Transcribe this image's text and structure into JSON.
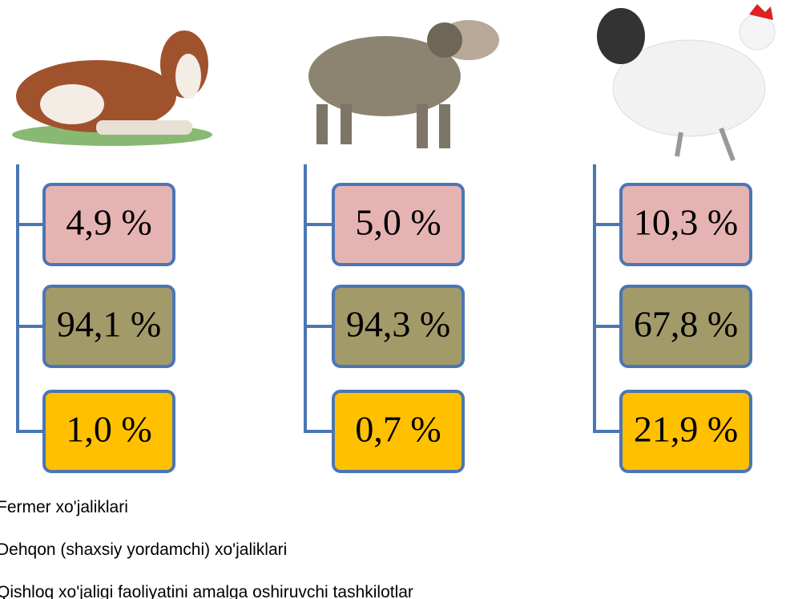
{
  "groups": [
    {
      "boxes": [
        "4,9 %",
        "94,1 %",
        "1,0 %"
      ]
    },
    {
      "boxes": [
        "5,0 %",
        "94,3 %",
        "0,7 %"
      ]
    },
    {
      "boxes": [
        "10,3 %",
        "67,8 %",
        "21,9 %"
      ]
    }
  ],
  "legend": [
    "Fermer xo'jaliklari",
    "Dehqon (shaxsiy yordamchi) xo'jaliklari",
    "Qishloq xo'jaligi faoliyatini amalga oshiruvchi tashkilotlar"
  ]
}
